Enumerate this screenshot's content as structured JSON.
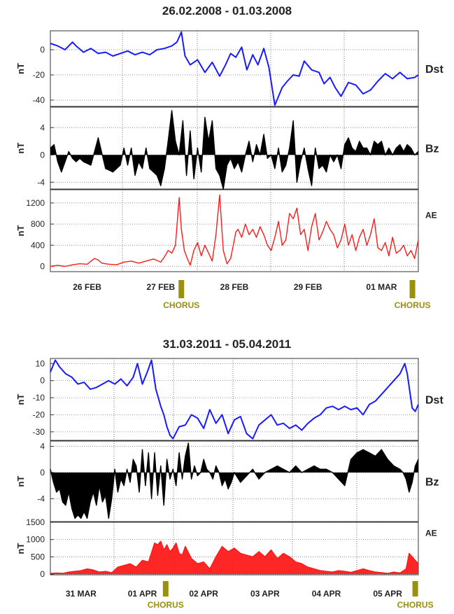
{
  "chart_data": [
    {
      "type": "line",
      "title": "26.02.2008 - 01.03.2008",
      "x_ticks": [
        "26 FEB",
        "27 FEB",
        "28 FEB",
        "29 FEB",
        "01 MAR"
      ],
      "x_unit": "days",
      "x_range": [
        0,
        5
      ],
      "markers": [
        {
          "label": "CHORUS",
          "x": 1.78
        },
        {
          "label": "",
          "x": 4.92
        },
        {
          "label": "CHORUS",
          "x": 4.92
        }
      ],
      "panels": [
        {
          "name": "Dst",
          "ylabel": "nT",
          "color": "#1a1aff",
          "fill": false,
          "ylim": [
            -45,
            15
          ],
          "yticks": [
            0,
            -20,
            -40
          ],
          "dashed_zero": false,
          "x": [
            0,
            0.1,
            0.2,
            0.3,
            0.35,
            0.45,
            0.55,
            0.65,
            0.75,
            0.85,
            0.95,
            1.05,
            1.15,
            1.25,
            1.35,
            1.45,
            1.55,
            1.65,
            1.72,
            1.78,
            1.83,
            1.9,
            2.0,
            2.1,
            2.2,
            2.3,
            2.38,
            2.45,
            2.52,
            2.6,
            2.67,
            2.75,
            2.82,
            2.9,
            2.97,
            3.05,
            3.15,
            3.22,
            3.3,
            3.38,
            3.45,
            3.55,
            3.65,
            3.72,
            3.8,
            3.87,
            3.95,
            4.05,
            4.15,
            4.25,
            4.35,
            4.45,
            4.55,
            4.65,
            4.75,
            4.85,
            4.95,
            5.0
          ],
          "y": [
            5,
            3,
            0,
            6,
            3,
            -2,
            1,
            -3,
            -2,
            -5,
            -3,
            -1,
            -4,
            -2,
            -4,
            0,
            1,
            3,
            6,
            14,
            -5,
            -12,
            -8,
            -18,
            -10,
            -21,
            -12,
            -3,
            -6,
            2,
            -16,
            -4,
            -12,
            1,
            -14,
            -44,
            -30,
            -25,
            -20,
            -21,
            -9,
            -16,
            -18,
            -27,
            -22,
            -30,
            -37,
            -26,
            -28,
            -35,
            -32,
            -25,
            -19,
            -23,
            -18,
            -23,
            -22,
            -20
          ]
        },
        {
          "name": "Bz",
          "ylabel": "nT",
          "color": "#000000",
          "fill": true,
          "ylim": [
            -5,
            7
          ],
          "yticks": [
            4,
            0,
            -4
          ],
          "dashed_zero": true,
          "x": [
            0,
            0.05,
            0.1,
            0.15,
            0.2,
            0.25,
            0.3,
            0.35,
            0.4,
            0.45,
            0.55,
            0.65,
            0.75,
            0.85,
            0.95,
            1.0,
            1.05,
            1.1,
            1.15,
            1.2,
            1.25,
            1.3,
            1.35,
            1.4,
            1.45,
            1.5,
            1.55,
            1.6,
            1.65,
            1.7,
            1.75,
            1.8,
            1.85,
            1.9,
            1.95,
            2.0,
            2.05,
            2.1,
            2.15,
            2.2,
            2.25,
            2.3,
            2.35,
            2.4,
            2.45,
            2.5,
            2.55,
            2.6,
            2.65,
            2.7,
            2.75,
            2.8,
            2.85,
            2.9,
            2.95,
            3.0,
            3.05,
            3.1,
            3.15,
            3.2,
            3.25,
            3.3,
            3.35,
            3.4,
            3.45,
            3.5,
            3.55,
            3.6,
            3.65,
            3.7,
            3.75,
            3.8,
            3.85,
            3.9,
            3.95,
            4.0,
            4.05,
            4.1,
            4.15,
            4.2,
            4.25,
            4.3,
            4.35,
            4.4,
            4.45,
            4.5,
            4.55,
            4.6,
            4.65,
            4.7,
            4.75,
            4.8,
            4.85,
            4.9,
            4.95,
            5.0
          ],
          "y": [
            1,
            1.5,
            -1,
            -2.5,
            -1,
            0.5,
            -0.5,
            -1,
            -0.5,
            -1,
            -1.5,
            2.5,
            -2,
            -2.5,
            -1.5,
            1,
            -1.5,
            1,
            -3,
            -1,
            -2,
            1,
            -2,
            -2.5,
            -3,
            -4.5,
            -2,
            2,
            6.5,
            2,
            0,
            5,
            -3,
            3.5,
            -3.5,
            1,
            -2.5,
            5.5,
            2,
            5,
            -2,
            -3,
            -5,
            -1.5,
            -0.5,
            -2,
            -1,
            -2.5,
            0,
            2,
            -1,
            1.5,
            0,
            3,
            -0.5,
            0,
            -2,
            1,
            -2.5,
            -1.5,
            1,
            5,
            -4,
            -1,
            1,
            -2,
            -4.5,
            1,
            -2,
            -1.5,
            -2.5,
            0,
            -1,
            0,
            -2,
            1.5,
            2.5,
            1,
            0.5,
            2,
            1,
            1,
            0,
            2,
            1.5,
            2,
            0,
            1,
            0,
            1,
            1.5,
            0.5,
            1.5,
            1,
            0,
            0.5
          ]
        },
        {
          "name": "AE",
          "ylabel": "nT",
          "color": "#ff1a1a",
          "fill": false,
          "ylim": [
            -100,
            1450
          ],
          "yticks": [
            0,
            400,
            800,
            1200
          ],
          "dashed_zero": false,
          "x": [
            0,
            0.1,
            0.2,
            0.3,
            0.4,
            0.5,
            0.6,
            0.65,
            0.7,
            0.8,
            0.9,
            1.0,
            1.1,
            1.2,
            1.3,
            1.4,
            1.5,
            1.55,
            1.6,
            1.65,
            1.7,
            1.75,
            1.78,
            1.82,
            1.86,
            1.9,
            1.95,
            2.0,
            2.05,
            2.1,
            2.15,
            2.2,
            2.25,
            2.3,
            2.35,
            2.4,
            2.45,
            2.5,
            2.52,
            2.55,
            2.6,
            2.65,
            2.7,
            2.75,
            2.8,
            2.85,
            2.9,
            2.95,
            3.0,
            3.05,
            3.1,
            3.15,
            3.2,
            3.25,
            3.3,
            3.35,
            3.4,
            3.45,
            3.5,
            3.55,
            3.6,
            3.65,
            3.7,
            3.75,
            3.8,
            3.85,
            3.9,
            3.95,
            4.0,
            4.05,
            4.1,
            4.15,
            4.2,
            4.25,
            4.3,
            4.35,
            4.4,
            4.45,
            4.5,
            4.55,
            4.6,
            4.65,
            4.7,
            4.75,
            4.8,
            4.85,
            4.9,
            4.95,
            5.0
          ],
          "y": [
            0,
            20,
            0,
            30,
            50,
            40,
            150,
            120,
            60,
            40,
            30,
            80,
            100,
            60,
            100,
            140,
            80,
            180,
            300,
            250,
            400,
            1300,
            700,
            300,
            150,
            20,
            300,
            450,
            200,
            400,
            250,
            100,
            600,
            1350,
            300,
            50,
            150,
            500,
            650,
            700,
            550,
            800,
            600,
            700,
            550,
            750,
            600,
            400,
            300,
            550,
            850,
            400,
            500,
            1000,
            900,
            1100,
            600,
            700,
            300,
            750,
            1000,
            500,
            650,
            850,
            700,
            600,
            350,
            500,
            800,
            400,
            600,
            300,
            550,
            700,
            400,
            600,
            900,
            350,
            300,
            450,
            200,
            550,
            250,
            300,
            400,
            200,
            300,
            150,
            500
          ]
        }
      ]
    },
    {
      "type": "line",
      "title": "31.03.2011 - 05.04.2011",
      "x_ticks": [
        "31 MAR",
        "01 APR",
        "02 APR",
        "03 APR",
        "04 APR",
        "05 APR"
      ],
      "x_unit": "days",
      "x_range": [
        0,
        6
      ],
      "markers": [
        {
          "label": "CHORUS",
          "x": 1.88
        },
        {
          "label": "CHORUS",
          "x": 5.95
        }
      ],
      "panels": [
        {
          "name": "Dst",
          "ylabel": "nT",
          "color": "#1a1aff",
          "fill": false,
          "ylim": [
            -35,
            13
          ],
          "yticks": [
            10,
            0,
            -10,
            -20,
            -30
          ],
          "dashed_zero": true,
          "x": [
            0,
            0.08,
            0.15,
            0.25,
            0.35,
            0.45,
            0.55,
            0.65,
            0.75,
            0.85,
            0.95,
            1.05,
            1.15,
            1.25,
            1.35,
            1.42,
            1.5,
            1.58,
            1.65,
            1.72,
            1.8,
            1.85,
            1.9,
            1.95,
            2.0,
            2.1,
            2.2,
            2.3,
            2.4,
            2.5,
            2.6,
            2.7,
            2.8,
            2.9,
            3.0,
            3.1,
            3.2,
            3.3,
            3.4,
            3.5,
            3.6,
            3.7,
            3.8,
            3.9,
            4.0,
            4.1,
            4.2,
            4.3,
            4.4,
            4.5,
            4.6,
            4.7,
            4.8,
            4.9,
            5.0,
            5.1,
            5.2,
            5.3,
            5.4,
            5.5,
            5.6,
            5.7,
            5.78,
            5.82,
            5.86,
            5.9,
            5.95,
            6.0
          ],
          "y": [
            5,
            12,
            8,
            4,
            2,
            -2,
            -1,
            -5,
            -4,
            -2,
            0,
            -2,
            1,
            -3,
            2,
            10,
            -2,
            5,
            12,
            -5,
            -15,
            -20,
            -27,
            -32,
            -34,
            -27,
            -26,
            -20,
            -22,
            -28,
            -17,
            -25,
            -20,
            -31,
            -23,
            -21,
            -31,
            -34,
            -26,
            -23,
            -20,
            -26,
            -25,
            -28,
            -26,
            -29,
            -25,
            -22,
            -20,
            -16,
            -15,
            -17,
            -15,
            -17,
            -16,
            -20,
            -14,
            -12,
            -8,
            -4,
            0,
            4,
            10,
            4,
            -6,
            -16,
            -18,
            -14
          ]
        },
        {
          "name": "Bz",
          "ylabel": "nT",
          "color": "#000000",
          "fill": true,
          "ylim": [
            -7.5,
            4.8
          ],
          "yticks": [
            4,
            0,
            -4
          ],
          "dashed_zero": true,
          "x": [
            0,
            0.05,
            0.1,
            0.15,
            0.2,
            0.25,
            0.3,
            0.35,
            0.4,
            0.45,
            0.5,
            0.55,
            0.6,
            0.65,
            0.7,
            0.75,
            0.8,
            0.85,
            0.9,
            0.95,
            1.0,
            1.05,
            1.1,
            1.15,
            1.2,
            1.25,
            1.3,
            1.35,
            1.4,
            1.45,
            1.5,
            1.55,
            1.6,
            1.65,
            1.7,
            1.75,
            1.8,
            1.85,
            1.9,
            1.95,
            2.0,
            2.05,
            2.1,
            2.15,
            2.2,
            2.25,
            2.3,
            2.35,
            2.4,
            2.45,
            2.5,
            2.55,
            2.6,
            2.65,
            2.7,
            2.75,
            2.8,
            2.85,
            2.9,
            2.95,
            3.0,
            3.1,
            3.2,
            3.3,
            3.4,
            3.5,
            3.6,
            3.7,
            3.8,
            3.9,
            4.0,
            4.1,
            4.2,
            4.3,
            4.4,
            4.5,
            4.6,
            4.7,
            4.8,
            4.9,
            5.0,
            5.1,
            5.2,
            5.3,
            5.4,
            5.5,
            5.6,
            5.7,
            5.75,
            5.8,
            5.85,
            5.9,
            5.95,
            6.0
          ],
          "y": [
            0.5,
            -1.5,
            -3,
            -2.5,
            -4.5,
            -5,
            -3,
            -5.5,
            -7,
            -6.5,
            -7,
            -6,
            -7,
            -4.5,
            -3,
            -5,
            -2,
            -4.5,
            -3.5,
            -7,
            -4,
            0.5,
            -3,
            -1,
            -2,
            0.5,
            -1.5,
            2,
            1,
            -3,
            3.5,
            -2,
            3,
            -4,
            3,
            -3.5,
            1,
            -5,
            2,
            -1,
            0.5,
            -2,
            3,
            -1,
            2.5,
            4.5,
            -1,
            1,
            -0.5,
            0,
            2,
            0.5,
            0,
            -1,
            1,
            0,
            -2,
            -1,
            -2.5,
            -1.5,
            0,
            -1.5,
            -0.5,
            0.5,
            -1,
            0,
            0.5,
            1,
            0.5,
            0,
            1,
            0,
            0.5,
            1,
            0.5,
            0.5,
            0,
            -1,
            -2,
            2,
            3,
            3.5,
            3,
            2.5,
            3.5,
            2,
            1,
            0.5,
            0,
            -1,
            -3,
            -1.5,
            1,
            2
          ]
        },
        {
          "name": "AE",
          "ylabel": "nT",
          "color": "#ff1a1a",
          "fill": true,
          "ylim": [
            -20,
            1500
          ],
          "yticks": [
            0,
            500,
            1000,
            1500
          ],
          "dashed_zero": false,
          "x": [
            0,
            0.1,
            0.2,
            0.3,
            0.4,
            0.5,
            0.6,
            0.7,
            0.8,
            0.9,
            1.0,
            1.1,
            1.2,
            1.3,
            1.4,
            1.5,
            1.6,
            1.7,
            1.75,
            1.8,
            1.85,
            1.9,
            1.95,
            2.0,
            2.05,
            2.1,
            2.15,
            2.2,
            2.3,
            2.4,
            2.5,
            2.6,
            2.7,
            2.8,
            2.9,
            3.0,
            3.1,
            3.2,
            3.3,
            3.4,
            3.5,
            3.6,
            3.7,
            3.8,
            3.9,
            4.0,
            4.1,
            4.2,
            4.3,
            4.4,
            4.5,
            4.6,
            4.7,
            4.8,
            4.9,
            5.0,
            5.1,
            5.2,
            5.3,
            5.4,
            5.5,
            5.6,
            5.7,
            5.8,
            5.85,
            5.9,
            5.95,
            6.0
          ],
          "y": [
            20,
            30,
            20,
            60,
            80,
            100,
            150,
            120,
            60,
            80,
            40,
            200,
            250,
            300,
            200,
            400,
            350,
            900,
            850,
            950,
            700,
            850,
            650,
            750,
            900,
            600,
            550,
            800,
            450,
            300,
            350,
            150,
            500,
            800,
            650,
            750,
            600,
            550,
            500,
            650,
            500,
            700,
            450,
            600,
            500,
            350,
            300,
            200,
            150,
            100,
            80,
            60,
            100,
            80,
            50,
            100,
            150,
            100,
            60,
            40,
            20,
            60,
            30,
            150,
            600,
            500,
            400,
            300
          ]
        }
      ]
    }
  ]
}
